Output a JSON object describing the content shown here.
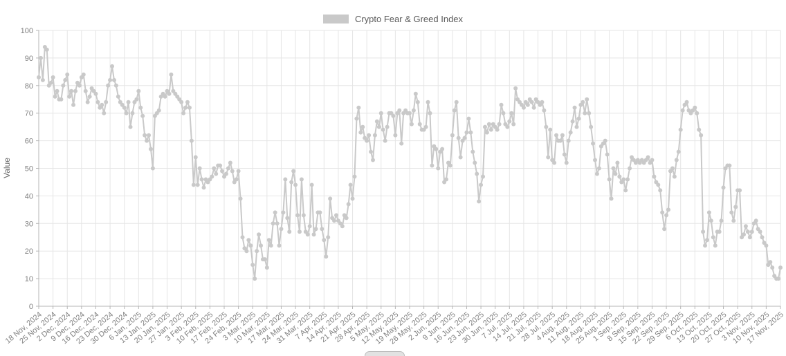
{
  "legend": {
    "label": "Crypto Fear & Greed Index",
    "swatch_color": "#c9c9c9"
  },
  "chart_data": {
    "type": "line",
    "title": "Crypto Fear & Greed Index",
    "ylabel": "Value",
    "xlabel": "",
    "ylim": [
      0,
      100
    ],
    "grid": true,
    "legend_position": "top-center",
    "marker": "circle",
    "series_color": "#c9c9c9",
    "x_start": "18 Nov, 2024",
    "x_end": "17 Nov, 2025",
    "cadence": "daily",
    "y_ticks": [
      0,
      10,
      20,
      30,
      40,
      50,
      60,
      70,
      80,
      90,
      100
    ],
    "x_tick_labels": [
      "18 Nov, 2024",
      "25 Nov, 2024",
      "2 Dec, 2024",
      "9 Dec, 2024",
      "16 Dec, 2024",
      "23 Dec, 2024",
      "30 Dec, 2024",
      "6 Jan, 2025",
      "13 Jan, 2025",
      "20 Jan, 2025",
      "27 Jan, 2025",
      "3 Feb, 2025",
      "10 Feb, 2025",
      "17 Feb, 2025",
      "24 Feb, 2025",
      "3 Mar, 2025",
      "10 Mar, 2025",
      "17 Mar, 2025",
      "24 Mar, 2025",
      "31 Mar, 2025",
      "7 Apr, 2025",
      "14 Apr, 2025",
      "21 Apr, 2025",
      "28 Apr, 2025",
      "5 May, 2025",
      "12 May, 2025",
      "19 May, 2025",
      "26 May, 2025",
      "2 Jun, 2025",
      "9 Jun, 2025",
      "16 Jun, 2025",
      "23 Jun, 2025",
      "30 Jun, 2025",
      "7 Jul, 2025",
      "14 Jul, 2025",
      "21 Jul, 2025",
      "28 Jul, 2025",
      "4 Aug, 2025",
      "11 Aug, 2025",
      "18 Aug, 2025",
      "25 Aug, 2025",
      "1 Sep, 2025",
      "8 Sep, 2025",
      "15 Sep, 2025",
      "22 Sep, 2025",
      "29 Sep, 2025",
      "6 Oct, 2025",
      "13 Oct, 2025",
      "20 Oct, 2025",
      "27 Oct, 2025",
      "3 Nov, 2025",
      "10 Nov, 2025",
      "17 Nov, 2025"
    ],
    "series": [
      {
        "name": "Crypto Fear & Greed Index",
        "color": "#c9c9c9",
        "values": [
          83,
          90,
          82,
          94,
          93,
          80,
          81,
          83,
          76,
          78,
          75,
          75,
          80,
          82,
          84,
          76,
          78,
          73,
          78,
          81,
          80,
          83,
          84,
          78,
          74,
          76,
          79,
          78,
          77,
          74,
          72,
          73,
          70,
          74,
          80,
          82,
          87,
          82,
          80,
          76,
          74,
          73,
          72,
          70,
          74,
          65,
          70,
          74,
          75,
          78,
          72,
          69,
          62,
          60,
          62,
          57,
          50,
          69,
          70,
          71,
          76,
          77,
          76,
          78,
          77,
          84,
          78,
          77,
          76,
          75,
          74,
          70,
          72,
          74,
          72,
          60,
          44,
          54,
          44,
          50,
          46,
          43,
          46,
          45,
          46,
          47,
          50,
          48,
          51,
          51,
          49,
          47,
          48,
          50,
          52,
          49,
          45,
          46,
          49,
          39,
          25,
          21,
          20,
          24,
          22,
          15,
          10,
          20,
          26,
          22,
          17,
          17,
          14,
          24,
          22,
          30,
          34,
          30,
          22,
          28,
          34,
          46,
          32,
          27,
          45,
          49,
          44,
          33,
          27,
          46,
          33,
          27,
          26,
          29,
          44,
          26,
          28,
          34,
          34,
          28,
          24,
          18,
          25,
          39,
          32,
          31,
          33,
          31,
          30,
          29,
          33,
          32,
          37,
          44,
          39,
          47,
          68,
          72,
          63,
          65,
          61,
          60,
          62,
          56,
          53,
          62,
          67,
          65,
          70,
          64,
          60,
          65,
          70,
          70,
          69,
          62,
          70,
          71,
          59,
          70,
          71,
          70,
          70,
          66,
          71,
          77,
          74,
          66,
          64,
          64,
          65,
          74,
          70,
          51,
          58,
          57,
          50,
          56,
          57,
          45,
          46,
          52,
          51,
          62,
          71,
          74,
          61,
          54,
          60,
          61,
          63,
          68,
          63,
          56,
          52,
          48,
          38,
          44,
          47,
          65,
          63,
          66,
          64,
          66,
          65,
          64,
          66,
          73,
          70,
          66,
          65,
          67,
          70,
          66,
          79,
          75,
          74,
          73,
          72,
          74,
          73,
          75,
          74,
          72,
          75,
          74,
          73,
          74,
          71,
          65,
          54,
          64,
          53,
          52,
          62,
          60,
          60,
          62,
          55,
          52,
          60,
          63,
          67,
          72,
          65,
          68,
          73,
          74,
          70,
          75,
          70,
          65,
          59,
          53,
          48,
          50,
          58,
          59,
          60,
          55,
          46,
          39,
          50,
          48,
          52,
          47,
          45,
          46,
          42,
          46,
          50,
          54,
          53,
          52,
          53,
          52,
          53,
          52,
          53,
          54,
          52,
          53,
          47,
          45,
          44,
          42,
          34,
          28,
          33,
          35,
          49,
          50,
          47,
          53,
          56,
          64,
          71,
          73,
          74,
          71,
          70,
          71,
          72,
          70,
          64,
          62,
          27,
          22,
          24,
          34,
          31,
          25,
          22,
          27,
          27,
          31,
          43,
          50,
          51,
          51,
          34,
          31,
          36,
          42,
          42,
          25,
          26,
          29,
          27,
          25,
          27,
          30,
          31,
          28,
          27,
          25,
          23,
          22,
          15,
          16,
          14,
          11,
          10,
          10,
          14
        ]
      }
    ],
    "style": {
      "grid_color": "#e5e5e5",
      "axis_color": "#b5b5b5",
      "tick_text_color": "#808080",
      "y_title_color": "#6b6b6b",
      "background": "#ffffff"
    }
  }
}
